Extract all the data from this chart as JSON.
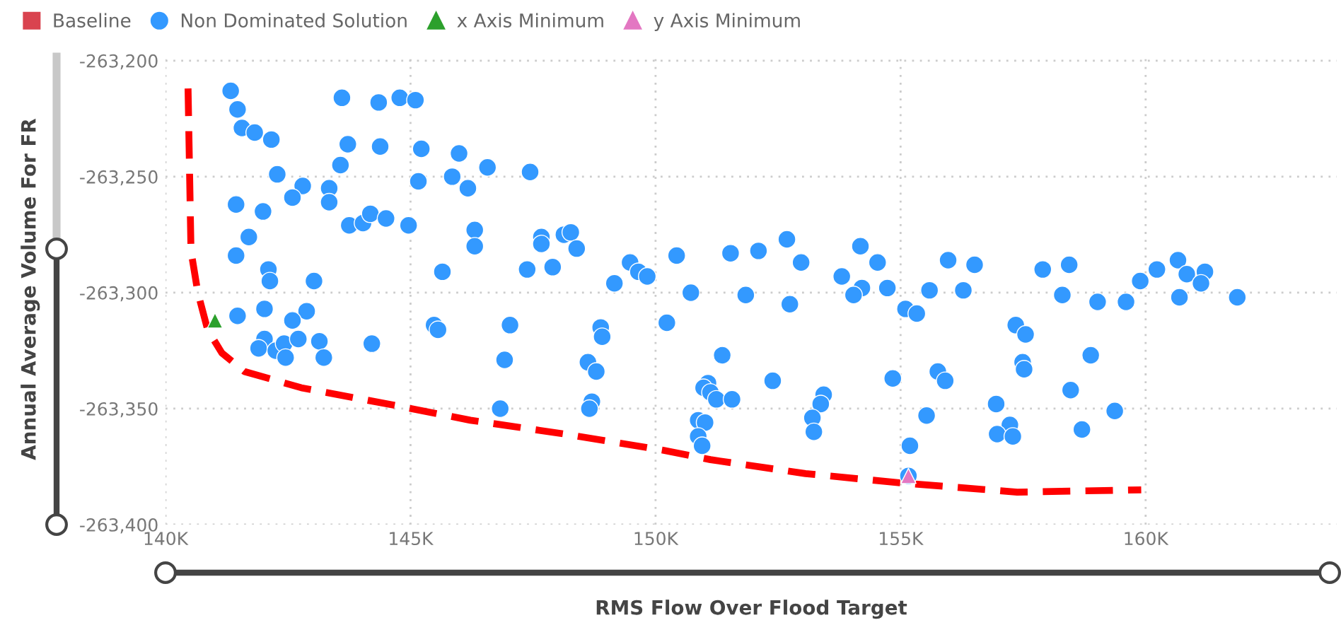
{
  "chart_data": {
    "type": "scatter",
    "xlabel": "RMS Flow Over Flood Target",
    "ylabel": "Annual Average Volume For FR",
    "xlim": [
      140000,
      163900
    ],
    "ylim": [
      -263400,
      -263197
    ],
    "xticks": [
      {
        "value": 140000,
        "label": "140K"
      },
      {
        "value": 145000,
        "label": "145K"
      },
      {
        "value": 150000,
        "label": "150K"
      },
      {
        "value": 155000,
        "label": "155K"
      },
      {
        "value": 160000,
        "label": "160K"
      }
    ],
    "yticks": [
      {
        "value": -263400,
        "label": "-263,400"
      },
      {
        "value": -263350,
        "label": "-263,350"
      },
      {
        "value": -263300,
        "label": "-263,300"
      },
      {
        "value": -263250,
        "label": "-263,250"
      },
      {
        "value": -263200,
        "label": "-263,200"
      }
    ],
    "grid": true,
    "legend": "top left",
    "series": [
      {
        "name": "Baseline",
        "marker": "square",
        "color": "#d9434f"
      },
      {
        "name": "Non Dominated Solution",
        "marker": "circle",
        "color": "#3399ff",
        "x": [
          141330,
          141470,
          141560,
          141820,
          142160,
          143600,
          144350,
          144780,
          145100,
          143720,
          144380,
          145220,
          145990,
          143570,
          142280,
          145160,
          145850,
          146170,
          142800,
          142590,
          143340,
          143340,
          141440,
          141990,
          143750,
          144030,
          144180,
          144500,
          144960,
          141700,
          141440,
          142100,
          142130,
          143030,
          145650,
          141470,
          142020,
          142880,
          142590,
          145480,
          146570,
          147440,
          146310,
          146310,
          147670,
          147670,
          148130,
          148270,
          148390,
          147380,
          147900,
          149480,
          149650,
          149830,
          149160,
          150430,
          150720,
          151530,
          152100,
          152680,
          152970,
          151840,
          152740,
          153800,
          154180,
          154530,
          154210,
          154040,
          154730,
          147030,
          148880,
          150230,
          155100,
          155330,
          155590,
          155970,
          156280,
          156510,
          157900,
          158440,
          158300,
          159020,
          159600,
          159890,
          160230,
          160660,
          160840,
          161210,
          161130,
          160690,
          161870,
          157350,
          142020,
          141900,
          142250,
          142420,
          142450,
          142710,
          143140,
          143230,
          144210,
          145560,
          146920,
          146830,
          148910,
          148620,
          148790,
          148700,
          148650,
          151360,
          151070,
          150980,
          151120,
          151240,
          151560,
          152390,
          153430,
          153370,
          150870,
          151010,
          150870,
          150950,
          153200,
          153230,
          154840,
          155760,
          155910,
          155530,
          155190,
          155160,
          157550,
          157490,
          157520,
          156950,
          157230,
          156970,
          157290,
          158880,
          158470,
          158700,
          159370
        ],
        "values": [
          -263213,
          -263221,
          -263229,
          -263231,
          -263234,
          -263216,
          -263218,
          -263216,
          -263217,
          -263236,
          -263237,
          -263238,
          -263240,
          -263245,
          -263249,
          -263252,
          -263250,
          -263255,
          -263254,
          -263259,
          -263255,
          -263261,
          -263262,
          -263265,
          -263271,
          -263270,
          -263266,
          -263268,
          -263271,
          -263276,
          -263284,
          -263290,
          -263295,
          -263295,
          -263291,
          -263310,
          -263307,
          -263308,
          -263312,
          -263314,
          -263246,
          -263248,
          -263273,
          -263280,
          -263276,
          -263279,
          -263275,
          -263274,
          -263281,
          -263290,
          -263289,
          -263287,
          -263291,
          -263293,
          -263296,
          -263284,
          -263300,
          -263283,
          -263282,
          -263277,
          -263287,
          -263301,
          -263305,
          -263293,
          -263280,
          -263287,
          -263298,
          -263301,
          -263298,
          -263314,
          -263315,
          -263313,
          -263307,
          -263309,
          -263299,
          -263286,
          -263299,
          -263288,
          -263290,
          -263288,
          -263301,
          -263304,
          -263304,
          -263295,
          -263290,
          -263286,
          -263292,
          -263291,
          -263296,
          -263302,
          -263302,
          -263314,
          -263320,
          -263324,
          -263325,
          -263322,
          -263328,
          -263320,
          -263321,
          -263328,
          -263322,
          -263316,
          -263329,
          -263350,
          -263319,
          -263330,
          -263334,
          -263347,
          -263350,
          -263327,
          -263339,
          -263341,
          -263343,
          -263346,
          -263346,
          -263338,
          -263344,
          -263348,
          -263355,
          -263356,
          -263362,
          -263366,
          -263354,
          -263360,
          -263337,
          -263334,
          -263338,
          -263353,
          -263366,
          -263379,
          -263318,
          -263330,
          -263333,
          -263348,
          -263357,
          -263361,
          -263362,
          -263327,
          -263342,
          -263359,
          -263351
        ]
      },
      {
        "name": "x Axis Minimum",
        "marker": "triangle",
        "color": "#2ca02c",
        "x": [
          141010
        ],
        "values": [
          -263312
        ]
      },
      {
        "name": "y Axis Minimum",
        "marker": "triangle",
        "color": "#e377c2",
        "x": [
          155160
        ],
        "values": [
          -263379
        ]
      },
      {
        "type": "line",
        "marker": "none",
        "line_style": "dashed",
        "color": "#ff0000",
        "x": [
          140460,
          140520,
          140660,
          140860,
          141150,
          141610,
          142770,
          144780,
          146220,
          148160,
          150170,
          151120,
          153060,
          154990,
          157380,
          159910
        ],
        "values": [
          -263212,
          -263282,
          -263300,
          -263316,
          -263326,
          -263334,
          -263341,
          -263349,
          -263355,
          -263361,
          -263368,
          -263372,
          -263378,
          -263382,
          -263386,
          -263385
        ]
      }
    ]
  }
}
